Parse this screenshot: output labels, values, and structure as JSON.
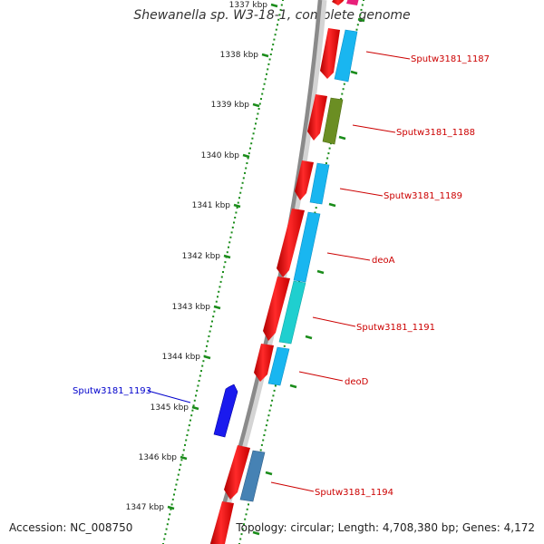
{
  "title": "Shewanella sp. W3-18-1, complete genome",
  "accession_text": "Accession: NC_008750",
  "topology_text": "Topology: circular; Length: 4,708,380 bp; Genes: 4,172",
  "colors": {
    "backbone": "#8a8a8a",
    "tick": "#1a8c1a",
    "forward_label": "#cc0000",
    "reverse_label": "#0000cc"
  },
  "kbp_ticks": [
    "1337 kbp",
    "1338 kbp",
    "1339 kbp",
    "1340 kbp",
    "1341 kbp",
    "1342 kbp",
    "1343 kbp",
    "1344 kbp",
    "1345 kbp",
    "1346 kbp",
    "1347 kbp"
  ],
  "genes": [
    {
      "label": "Sputw3181_1187",
      "strand": "forward",
      "fill": "#19b6f0"
    },
    {
      "label": "Sputw3181_1188",
      "strand": "forward",
      "fill": "#6b8e23"
    },
    {
      "label": "Sputw3181_1189",
      "strand": "forward",
      "fill": "#19b6f0"
    },
    {
      "label": "deoA",
      "strand": "forward",
      "fill": "#19b6f0"
    },
    {
      "label": "Sputw3181_1191",
      "strand": "forward",
      "fill": "#1fcfcf"
    },
    {
      "label": "deoD",
      "strand": "forward",
      "fill": "#19b6f0"
    },
    {
      "label": "Sputw3181_1193",
      "strand": "reverse",
      "fill": "#1a1aee"
    },
    {
      "label": "Sputw3181_1194",
      "strand": "forward",
      "fill": "#4682b4"
    }
  ]
}
